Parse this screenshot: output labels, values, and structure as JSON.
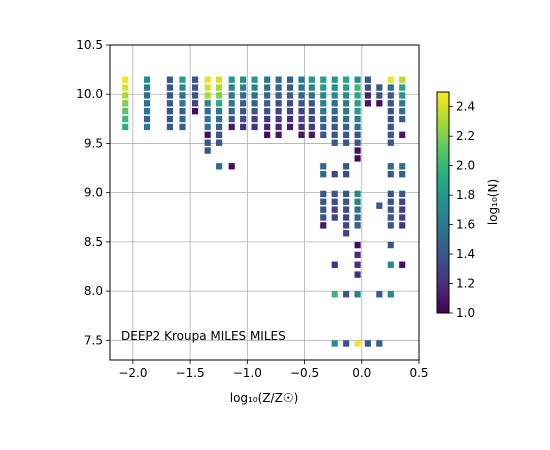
{
  "chart_data": {
    "type": "heatmap",
    "xlabel": "log₁₀(Z/Z☉)",
    "ylabel": "",
    "xlim": [
      -2.2,
      0.5
    ],
    "ylim": [
      7.3,
      10.5
    ],
    "xticks": [
      "−2.0",
      "−1.5",
      "−1.0",
      "−0.5",
      "0.0",
      "0.5"
    ],
    "yticks": [
      "7.5",
      "8.0",
      "8.5",
      "9.0",
      "9.5",
      "10.0",
      "10.5"
    ],
    "grid": true,
    "annotation": "DEEP2 Kroupa MILES MILES",
    "colormap": "viridis",
    "colorbar": {
      "label": "log₁₀(N)",
      "range": [
        1.0,
        2.5
      ],
      "ticks": [
        "1.0",
        "1.2",
        "1.4",
        "1.6",
        "1.8",
        "2.0",
        "2.2",
        "2.4"
      ]
    },
    "cell_width": 0.067,
    "cell_height": 0.08,
    "cells": [
      [
        -2.06,
        10.14,
        2.48
      ],
      [
        -2.06,
        10.06,
        2.4
      ],
      [
        -2.06,
        9.98,
        2.3
      ],
      [
        -2.06,
        9.9,
        2.2
      ],
      [
        -2.06,
        9.82,
        2.1
      ],
      [
        -2.06,
        9.74,
        2.0
      ],
      [
        -2.06,
        9.66,
        1.95
      ],
      [
        -1.87,
        10.14,
        1.75
      ],
      [
        -1.87,
        10.06,
        1.6
      ],
      [
        -1.87,
        9.98,
        1.55
      ],
      [
        -1.87,
        9.9,
        1.55
      ],
      [
        -1.87,
        9.82,
        1.6
      ],
      [
        -1.87,
        9.74,
        1.5
      ],
      [
        -1.87,
        9.66,
        1.6
      ],
      [
        -1.67,
        10.14,
        1.4
      ],
      [
        -1.67,
        10.06,
        1.4
      ],
      [
        -1.67,
        9.98,
        1.4
      ],
      [
        -1.67,
        9.9,
        1.45
      ],
      [
        -1.67,
        9.82,
        1.4
      ],
      [
        -1.67,
        9.74,
        1.4
      ],
      [
        -1.67,
        9.66,
        1.4
      ],
      [
        -1.56,
        10.14,
        1.85
      ],
      [
        -1.56,
        10.06,
        1.7
      ],
      [
        -1.56,
        9.98,
        1.55
      ],
      [
        -1.56,
        9.9,
        1.6
      ],
      [
        -1.56,
        9.82,
        1.5
      ],
      [
        -1.56,
        9.74,
        1.55
      ],
      [
        -1.56,
        9.66,
        1.45
      ],
      [
        -1.45,
        10.14,
        1.4
      ],
      [
        -1.45,
        10.06,
        1.4
      ],
      [
        -1.45,
        9.98,
        1.4
      ],
      [
        -1.45,
        9.9,
        1.3
      ],
      [
        -1.45,
        9.82,
        1.05
      ],
      [
        -1.34,
        10.14,
        2.45
      ],
      [
        -1.34,
        10.06,
        2.4
      ],
      [
        -1.34,
        9.98,
        2.3
      ],
      [
        -1.34,
        9.9,
        1.7
      ],
      [
        -1.34,
        9.82,
        1.55
      ],
      [
        -1.34,
        9.74,
        1.6
      ],
      [
        -1.34,
        9.66,
        1.6
      ],
      [
        -1.34,
        9.58,
        1.05
      ],
      [
        -1.34,
        9.5,
        1.4
      ],
      [
        -1.34,
        9.42,
        1.4
      ],
      [
        -1.24,
        10.14,
        2.4
      ],
      [
        -1.24,
        10.06,
        2.3
      ],
      [
        -1.24,
        9.98,
        2.2
      ],
      [
        -1.24,
        9.9,
        1.9
      ],
      [
        -1.24,
        9.82,
        1.6
      ],
      [
        -1.24,
        9.74,
        1.55
      ],
      [
        -1.24,
        9.66,
        1.45
      ],
      [
        -1.24,
        9.58,
        1.4
      ],
      [
        -1.24,
        9.5,
        1.4
      ],
      [
        -1.24,
        9.26,
        1.55
      ],
      [
        -1.13,
        10.14,
        1.8
      ],
      [
        -1.13,
        10.06,
        1.7
      ],
      [
        -1.13,
        9.98,
        1.6
      ],
      [
        -1.13,
        9.9,
        1.6
      ],
      [
        -1.13,
        9.82,
        1.5
      ],
      [
        -1.13,
        9.74,
        1.4
      ],
      [
        -1.13,
        9.66,
        1.1
      ],
      [
        -1.13,
        9.26,
        1.05
      ],
      [
        -1.03,
        10.14,
        1.75
      ],
      [
        -1.03,
        10.06,
        1.65
      ],
      [
        -1.03,
        9.98,
        1.55
      ],
      [
        -1.03,
        9.9,
        1.45
      ],
      [
        -1.03,
        9.82,
        1.4
      ],
      [
        -1.03,
        9.74,
        1.35
      ],
      [
        -1.03,
        9.66,
        1.2
      ],
      [
        -0.93,
        10.14,
        1.8
      ],
      [
        -0.93,
        10.06,
        1.7
      ],
      [
        -0.93,
        9.98,
        1.55
      ],
      [
        -0.93,
        9.9,
        1.45
      ],
      [
        -0.93,
        9.82,
        1.4
      ],
      [
        -0.93,
        9.74,
        1.3
      ],
      [
        -0.93,
        9.66,
        1.2
      ],
      [
        -0.82,
        10.14,
        1.6
      ],
      [
        -0.82,
        10.06,
        1.55
      ],
      [
        -0.82,
        9.98,
        1.5
      ],
      [
        -0.82,
        9.9,
        1.45
      ],
      [
        -0.82,
        9.82,
        1.4
      ],
      [
        -0.82,
        9.74,
        1.25
      ],
      [
        -0.82,
        9.66,
        1.15
      ],
      [
        -0.82,
        9.58,
        1.05
      ],
      [
        -0.72,
        10.14,
        1.55
      ],
      [
        -0.72,
        10.06,
        1.5
      ],
      [
        -0.72,
        9.98,
        1.45
      ],
      [
        -0.72,
        9.9,
        1.35
      ],
      [
        -0.72,
        9.82,
        1.3
      ],
      [
        -0.72,
        9.74,
        1.25
      ],
      [
        -0.72,
        9.66,
        1.15
      ],
      [
        -0.72,
        9.58,
        1.1
      ],
      [
        -0.62,
        10.14,
        1.45
      ],
      [
        -0.62,
        10.06,
        1.4
      ],
      [
        -0.62,
        9.98,
        1.45
      ],
      [
        -0.62,
        9.9,
        1.35
      ],
      [
        -0.62,
        9.82,
        1.3
      ],
      [
        -0.62,
        9.74,
        1.2
      ],
      [
        -0.62,
        9.66,
        1.1
      ],
      [
        -0.52,
        10.14,
        1.6
      ],
      [
        -0.52,
        10.06,
        1.55
      ],
      [
        -0.52,
        9.98,
        1.5
      ],
      [
        -0.52,
        9.9,
        1.4
      ],
      [
        -0.52,
        9.82,
        1.3
      ],
      [
        -0.52,
        9.74,
        1.3
      ],
      [
        -0.52,
        9.66,
        1.2
      ],
      [
        -0.52,
        9.58,
        1.1
      ],
      [
        -0.43,
        10.14,
        1.8
      ],
      [
        -0.43,
        10.06,
        1.7
      ],
      [
        -0.43,
        9.98,
        1.55
      ],
      [
        -0.43,
        9.9,
        1.4
      ],
      [
        -0.43,
        9.82,
        1.35
      ],
      [
        -0.43,
        9.74,
        1.3
      ],
      [
        -0.43,
        9.66,
        1.25
      ],
      [
        -0.43,
        9.58,
        1.1
      ],
      [
        -0.33,
        10.14,
        1.85
      ],
      [
        -0.33,
        10.06,
        1.8
      ],
      [
        -0.33,
        9.98,
        1.7
      ],
      [
        -0.33,
        9.9,
        1.65
      ],
      [
        -0.33,
        9.82,
        1.6
      ],
      [
        -0.33,
        9.74,
        1.5
      ],
      [
        -0.33,
        9.66,
        1.45
      ],
      [
        -0.33,
        9.58,
        1.4
      ],
      [
        -0.33,
        9.26,
        1.5
      ],
      [
        -0.33,
        9.18,
        1.5
      ],
      [
        -0.33,
        8.98,
        1.4
      ],
      [
        -0.33,
        8.9,
        1.4
      ],
      [
        -0.33,
        8.82,
        1.4
      ],
      [
        -0.33,
        8.74,
        1.4
      ],
      [
        -0.33,
        8.66,
        1.1
      ],
      [
        -0.23,
        10.14,
        1.8
      ],
      [
        -0.23,
        10.06,
        1.75
      ],
      [
        -0.23,
        9.98,
        1.7
      ],
      [
        -0.23,
        9.9,
        1.55
      ],
      [
        -0.23,
        9.82,
        1.5
      ],
      [
        -0.23,
        9.74,
        1.45
      ],
      [
        -0.23,
        9.66,
        1.4
      ],
      [
        -0.23,
        9.58,
        1.4
      ],
      [
        -0.23,
        9.5,
        1.4
      ],
      [
        -0.23,
        9.18,
        1.3
      ],
      [
        -0.23,
        8.98,
        1.4
      ],
      [
        -0.23,
        8.9,
        1.35
      ],
      [
        -0.23,
        8.82,
        1.3
      ],
      [
        -0.23,
        8.74,
        1.3
      ],
      [
        -0.23,
        8.26,
        1.2
      ],
      [
        -0.23,
        7.96,
        2.0
      ],
      [
        -0.23,
        7.46,
        1.75
      ],
      [
        -0.13,
        10.14,
        1.9
      ],
      [
        -0.13,
        10.06,
        1.85
      ],
      [
        -0.13,
        9.98,
        1.7
      ],
      [
        -0.13,
        9.9,
        1.6
      ],
      [
        -0.13,
        9.82,
        1.6
      ],
      [
        -0.13,
        9.74,
        1.55
      ],
      [
        -0.13,
        9.66,
        1.45
      ],
      [
        -0.13,
        9.58,
        1.4
      ],
      [
        -0.13,
        9.5,
        1.4
      ],
      [
        -0.13,
        9.26,
        1.4
      ],
      [
        -0.13,
        9.18,
        1.35
      ],
      [
        -0.13,
        8.98,
        1.4
      ],
      [
        -0.13,
        8.9,
        1.4
      ],
      [
        -0.13,
        8.82,
        1.35
      ],
      [
        -0.13,
        8.74,
        1.3
      ],
      [
        -0.13,
        8.66,
        1.3
      ],
      [
        -0.13,
        8.58,
        1.3
      ],
      [
        -0.13,
        7.96,
        1.4
      ],
      [
        -0.13,
        7.46,
        1.4
      ],
      [
        -0.03,
        10.14,
        1.75
      ],
      [
        -0.03,
        10.06,
        2.0
      ],
      [
        -0.03,
        9.98,
        1.9
      ],
      [
        -0.03,
        9.9,
        1.85
      ],
      [
        -0.03,
        9.82,
        1.8
      ],
      [
        -0.03,
        9.74,
        1.65
      ],
      [
        -0.03,
        9.66,
        1.55
      ],
      [
        -0.03,
        9.58,
        1.4
      ],
      [
        -0.03,
        9.5,
        1.4
      ],
      [
        -0.03,
        9.42,
        1.05
      ],
      [
        -0.03,
        9.34,
        1.05
      ],
      [
        -0.03,
        8.98,
        1.7
      ],
      [
        -0.03,
        8.9,
        1.65
      ],
      [
        -0.03,
        8.82,
        1.55
      ],
      [
        -0.03,
        8.74,
        1.5
      ],
      [
        -0.03,
        8.66,
        1.45
      ],
      [
        -0.03,
        8.46,
        1.05
      ],
      [
        -0.03,
        8.36,
        1.2
      ],
      [
        -0.03,
        8.26,
        1.2
      ],
      [
        -0.03,
        8.16,
        1.2
      ],
      [
        -0.03,
        7.96,
        1.65
      ],
      [
        -0.03,
        7.46,
        2.48
      ],
      [
        0.06,
        10.14,
        1.4
      ],
      [
        0.06,
        10.06,
        1.35
      ],
      [
        0.06,
        9.98,
        1.15
      ],
      [
        0.06,
        9.9,
        1.1
      ],
      [
        0.06,
        7.46,
        1.4
      ],
      [
        0.16,
        10.06,
        1.4
      ],
      [
        0.16,
        9.98,
        1.4
      ],
      [
        0.16,
        9.9,
        1.05
      ],
      [
        0.16,
        8.86,
        1.4
      ],
      [
        0.16,
        7.96,
        1.45
      ],
      [
        0.16,
        7.46,
        1.45
      ],
      [
        0.26,
        10.14,
        2.45
      ],
      [
        0.26,
        10.06,
        1.55
      ],
      [
        0.26,
        9.98,
        1.4
      ],
      [
        0.26,
        9.9,
        1.4
      ],
      [
        0.26,
        9.82,
        1.4
      ],
      [
        0.26,
        9.74,
        1.35
      ],
      [
        0.26,
        9.66,
        1.4
      ],
      [
        0.26,
        9.58,
        1.4
      ],
      [
        0.26,
        9.5,
        1.4
      ],
      [
        0.26,
        9.26,
        1.5
      ],
      [
        0.26,
        9.18,
        1.4
      ],
      [
        0.26,
        8.98,
        1.4
      ],
      [
        0.26,
        8.9,
        1.4
      ],
      [
        0.26,
        8.82,
        1.4
      ],
      [
        0.26,
        8.74,
        1.4
      ],
      [
        0.26,
        8.66,
        1.4
      ],
      [
        0.26,
        8.46,
        1.4
      ],
      [
        0.26,
        8.26,
        1.7
      ],
      [
        0.26,
        7.96,
        1.7
      ],
      [
        0.36,
        10.14,
        2.35
      ],
      [
        0.36,
        10.06,
        1.9
      ],
      [
        0.36,
        9.98,
        1.8
      ],
      [
        0.36,
        9.9,
        1.65
      ],
      [
        0.36,
        9.82,
        1.55
      ],
      [
        0.36,
        9.74,
        1.45
      ],
      [
        0.36,
        9.58,
        1.1
      ],
      [
        0.36,
        9.26,
        1.55
      ],
      [
        0.36,
        9.18,
        1.45
      ],
      [
        0.36,
        8.98,
        1.4
      ],
      [
        0.36,
        8.9,
        1.3
      ],
      [
        0.36,
        8.82,
        1.25
      ],
      [
        0.36,
        8.74,
        1.3
      ],
      [
        0.36,
        8.66,
        1.25
      ],
      [
        0.36,
        8.26,
        1.05
      ]
    ]
  }
}
